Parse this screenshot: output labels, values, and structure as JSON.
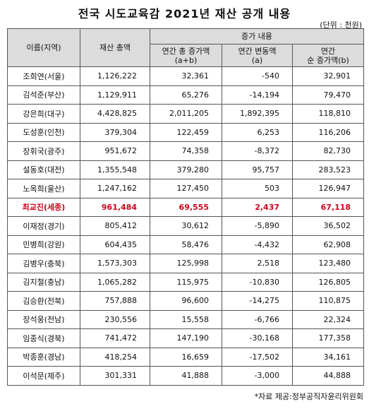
{
  "header": {
    "title": "전국 시도교육감 2021년 재산 공개 내용",
    "unit": "(단위 : 천원)"
  },
  "table": {
    "columns": {
      "name": "이름(지역)",
      "total": "재산 총액",
      "group": "증가 내용",
      "sub": [
        "연간 총 증가액\n(a+b)",
        "연간 변동액\n(a)",
        "연간\n순 증가액(b)"
      ]
    },
    "rows": [
      {
        "cells": [
          "조희연(서울)",
          "1,126,222",
          "32,361",
          "-540",
          "32,901"
        ]
      },
      {
        "cells": [
          "김석준(부산)",
          "1,129,911",
          "65,276",
          "-14,194",
          "79,470"
        ]
      },
      {
        "cells": [
          "강은희(대구)",
          "4,428,825",
          "2,011,205",
          "1,892,395",
          "118,810"
        ]
      },
      {
        "cells": [
          "도성훈(인천)",
          "379,304",
          "122,459",
          "6,253",
          "116,206"
        ]
      },
      {
        "cells": [
          "장휘국(광주)",
          "951,672",
          "74,358",
          "-8,372",
          "82,730"
        ]
      },
      {
        "cells": [
          "설동호(대전)",
          "1,355,548",
          "379,280",
          "95,757",
          "283,523"
        ]
      },
      {
        "cells": [
          "노옥희(울산)",
          "1,247,162",
          "127,450",
          "503",
          "126,947"
        ]
      },
      {
        "cells": [
          "최교진(세종)",
          "961,484",
          "69,555",
          "2,437",
          "67,118"
        ],
        "color": "#d0021b"
      },
      {
        "cells": [
          "이재정(경기)",
          "805,412",
          "30,612",
          "-5,890",
          "36,502"
        ]
      },
      {
        "cells": [
          "민병희(강원)",
          "604,435",
          "58,476",
          "-4,432",
          "62,908"
        ]
      },
      {
        "cells": [
          "김병우(충북)",
          "1,573,303",
          "125,998",
          "2,518",
          "123,480"
        ]
      },
      {
        "cells": [
          "김지철(충남)",
          "1,065,282",
          "115,975",
          "-10,830",
          "126,805"
        ]
      },
      {
        "cells": [
          "김승환(전북)",
          "757,888",
          "96,600",
          "-14,275",
          "110,875"
        ]
      },
      {
        "cells": [
          "장석웅(전남)",
          "230,556",
          "15,558",
          "-6,766",
          "22,324"
        ]
      },
      {
        "cells": [
          "임종식(경북)",
          "741,472",
          "147,190",
          "-30,168",
          "177,358"
        ]
      },
      {
        "cells": [
          "박종훈(경남)",
          "418,254",
          "16,659",
          "-17,502",
          "34,161"
        ]
      },
      {
        "cells": [
          "이석문(제주)",
          "301,331",
          "41,888",
          "-3,000",
          "44,888"
        ]
      }
    ]
  },
  "footer": {
    "source": "*자료 제공:정부공직자윤리위원회"
  }
}
